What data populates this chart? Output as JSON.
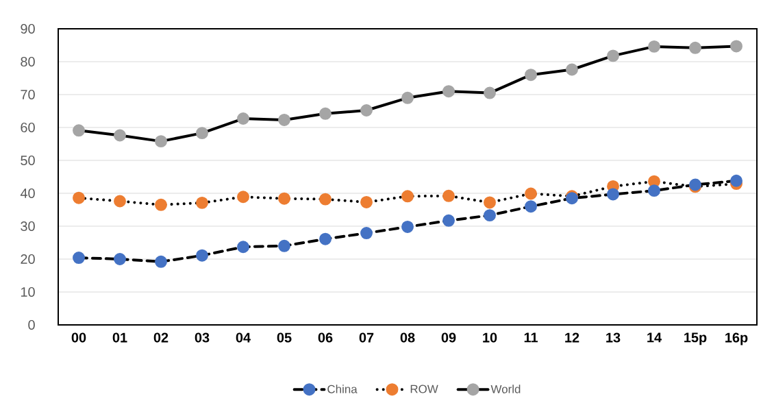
{
  "chart_data": {
    "type": "line",
    "categories": [
      "00",
      "01",
      "02",
      "03",
      "04",
      "05",
      "06",
      "07",
      "08",
      "09",
      "10",
      "11",
      "12",
      "13",
      "14",
      "15p",
      "16p"
    ],
    "series": [
      {
        "name": "China",
        "color": "#4472c4",
        "line_style": "dashed",
        "values": [
          20.4,
          20.0,
          19.2,
          21.1,
          23.7,
          24.0,
          26.1,
          27.9,
          29.8,
          31.7,
          33.3,
          36.0,
          38.5,
          39.7,
          40.8,
          42.6,
          43.8
        ]
      },
      {
        "name": "ROW",
        "color": "#ed7d31",
        "line_style": "dotted",
        "values": [
          38.6,
          37.6,
          36.5,
          37.1,
          38.9,
          38.4,
          38.2,
          37.3,
          39.1,
          39.2,
          37.2,
          39.9,
          39.1,
          42.1,
          43.6,
          42.0,
          42.9
        ]
      },
      {
        "name": "World",
        "color": "#a5a5a5",
        "line_style": "solid",
        "values": [
          59.1,
          57.6,
          55.8,
          58.3,
          62.7,
          62.3,
          64.2,
          65.2,
          69.0,
          71.0,
          70.5,
          76.0,
          77.6,
          81.8,
          84.6,
          84.2,
          84.7
        ]
      }
    ],
    "ylim": [
      0,
      90
    ],
    "yticks": [
      0,
      10,
      20,
      30,
      40,
      50,
      60,
      70,
      80,
      90
    ],
    "grid": "y",
    "legend": "bottom",
    "marker": "circle"
  }
}
